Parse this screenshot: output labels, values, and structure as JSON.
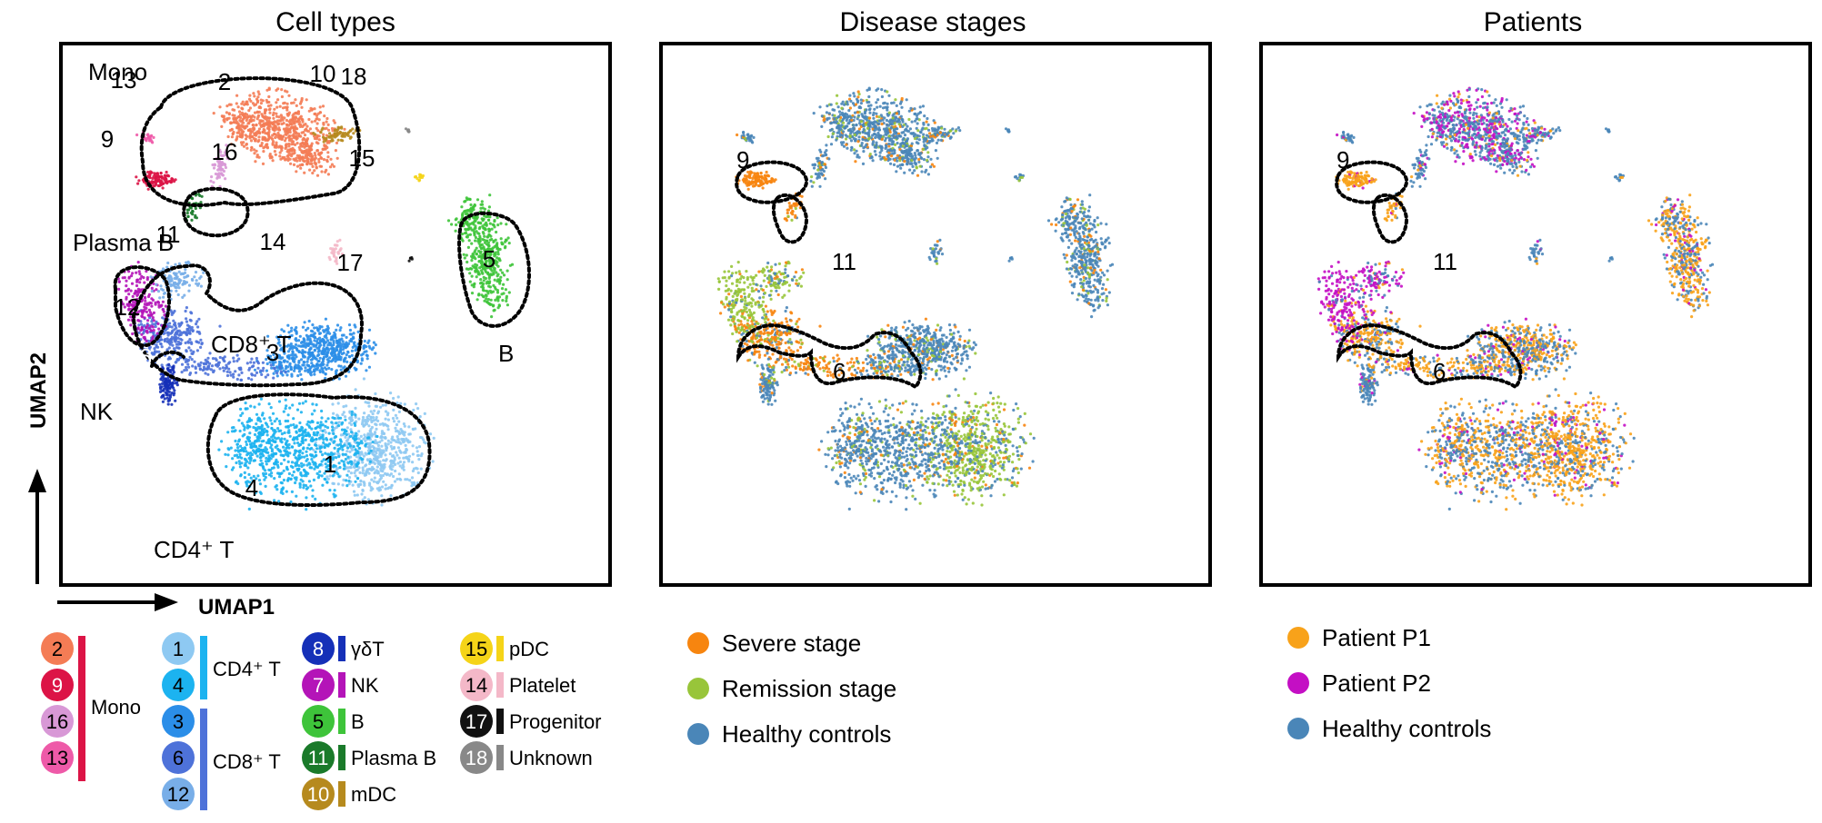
{
  "colors": {
    "ct_1": "#8ec9f2",
    "ct_2": "#f47c55",
    "ct_3": "#2b8ee8",
    "ct_4": "#1cb3f0",
    "ct_5": "#3ec43a",
    "ct_6": "#4e72d9",
    "ct_7": "#b414b8",
    "ct_8": "#1530b8",
    "ct_9": "#dc1446",
    "ct_10": "#b68a1e",
    "ct_11": "#1a7a2a",
    "ct_12": "#78aee8",
    "ct_13": "#ee5aa8",
    "ct_14": "#f4b8c8",
    "ct_15": "#f5d418",
    "ct_16": "#d898d6",
    "ct_17": "#111111",
    "ct_18": "#888888",
    "severe": "#f7850f",
    "remission": "#98c53a",
    "healthy": "#4a86b8",
    "p1": "#f8a21a",
    "p2": "#c40fc4"
  },
  "chart_data": [
    {
      "type": "scatter",
      "title": "Cell types",
      "xlabel": "UMAP1",
      "ylabel": "UMAP2",
      "grid": false,
      "clusters": [
        {
          "id": "1",
          "x": 6.2,
          "y": 1.8
        },
        {
          "id": "2",
          "x": 2.8,
          "y": 9.1
        },
        {
          "id": "3",
          "x": 4.9,
          "y": 3.9
        },
        {
          "id": "4",
          "x": 4.1,
          "y": 1.6
        },
        {
          "id": "5",
          "x": 8.4,
          "y": 5.7
        },
        {
          "id": "6",
          "x": 1.9,
          "y": 4.2
        },
        {
          "id": "7",
          "x": 0.6,
          "y": 4.8
        },
        {
          "id": "8",
          "x": 2.0,
          "y": 3.4
        },
        {
          "id": "9",
          "x": 1.6,
          "y": 7.5
        },
        {
          "id": "10",
          "x": 5.3,
          "y": 8.9
        },
        {
          "id": "11",
          "x": 2.8,
          "y": 5.9
        },
        {
          "id": "12",
          "x": 2.6,
          "y": 4.7
        },
        {
          "id": "13",
          "x": 1.7,
          "y": 8.9
        },
        {
          "id": "14",
          "x": 5.6,
          "y": 6.0
        },
        {
          "id": "15",
          "x": 7.3,
          "y": 7.7
        },
        {
          "id": "16",
          "x": 3.3,
          "y": 7.6
        },
        {
          "id": "17",
          "x": 6.9,
          "y": 5.6
        },
        {
          "id": "18",
          "x": 7.1,
          "y": 9.3
        }
      ],
      "group_labels": [
        {
          "text": "Mono"
        },
        {
          "text": "Plasma B"
        },
        {
          "text": "CD8⁺ T"
        },
        {
          "text": "NK"
        },
        {
          "text": "B"
        },
        {
          "text": "CD4⁺ T"
        }
      ],
      "legend_groups": [
        {
          "name": "Mono",
          "members": [
            {
              "id": "2",
              "label": ""
            },
            {
              "id": "9",
              "label": ""
            },
            {
              "id": "16",
              "label": ""
            },
            {
              "id": "13",
              "label": ""
            }
          ]
        },
        {
          "name": "CD4⁺ T",
          "members": [
            {
              "id": "1",
              "label": ""
            },
            {
              "id": "4",
              "label": ""
            }
          ]
        },
        {
          "name": "CD8⁺ T",
          "members": [
            {
              "id": "3",
              "label": ""
            },
            {
              "id": "6",
              "label": ""
            },
            {
              "id": "12",
              "label": ""
            }
          ]
        },
        {
          "name": "",
          "members": [
            {
              "id": "8",
              "label": "γδT"
            },
            {
              "id": "7",
              "label": "NK"
            },
            {
              "id": "5",
              "label": "B"
            },
            {
              "id": "11",
              "label": "Plasma B"
            },
            {
              "id": "10",
              "label": "mDC"
            }
          ]
        },
        {
          "name": "",
          "members": [
            {
              "id": "15",
              "label": "pDC"
            },
            {
              "id": "14",
              "label": "Platelet"
            },
            {
              "id": "17",
              "label": "Progenitor"
            },
            {
              "id": "18",
              "label": "Unknown"
            }
          ]
        }
      ]
    },
    {
      "type": "scatter",
      "title": "Disease stages",
      "grid": false,
      "highlighted_clusters": [
        "9",
        "11",
        "6"
      ],
      "legend": [
        "Severe stage",
        "Remission stage",
        "Healthy controls"
      ]
    },
    {
      "type": "scatter",
      "title": "Patients",
      "grid": false,
      "highlighted_clusters": [
        "9",
        "11",
        "6"
      ],
      "legend": [
        "Patient P1",
        "Patient P2",
        "Healthy controls"
      ]
    }
  ]
}
